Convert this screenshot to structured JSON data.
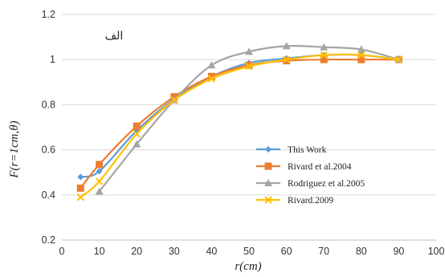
{
  "chart_data": {
    "type": "line",
    "panel_label": "الف",
    "xlabel": "r(cm)",
    "ylabel": "F(r=1cm,θ)",
    "xlim": [
      0,
      100
    ],
    "ylim": [
      0.2,
      1.2
    ],
    "x_ticks": [
      "0",
      "10",
      "20",
      "30",
      "40",
      "50",
      "60",
      "70",
      "80",
      "90",
      "100"
    ],
    "y_ticks": [
      "0.2",
      "0.4",
      "0.6",
      "0.8",
      "1",
      "1.2"
    ],
    "x_tick_values": [
      0,
      10,
      20,
      30,
      40,
      50,
      60,
      70,
      80,
      90,
      100
    ],
    "y_tick_values": [
      0.2,
      0.4,
      0.6,
      0.8,
      1.0,
      1.2
    ],
    "grid": "horizontal",
    "legend_position": "center-right",
    "series": [
      {
        "name": "This Work",
        "color": "#5b9bd5",
        "marker": "diamond",
        "x": [
          5,
          10,
          20,
          30,
          40,
          50,
          60,
          70,
          80,
          90
        ],
        "y": [
          0.48,
          0.505,
          0.685,
          0.825,
          0.925,
          0.985,
          1.005,
          1.02,
          1.02,
          1.0
        ]
      },
      {
        "name": "Rivard et al.2004",
        "color": "#ed7d31",
        "marker": "square",
        "x": [
          5,
          10,
          20,
          30,
          40,
          50,
          60,
          70,
          80,
          90
        ],
        "y": [
          0.43,
          0.535,
          0.705,
          0.835,
          0.925,
          0.975,
          0.995,
          1.0,
          1.0,
          1.0
        ]
      },
      {
        "name": "Rodriguez et al.2005",
        "color": "#a5a5a5",
        "marker": "triangle",
        "x": [
          10,
          20,
          30,
          40,
          50,
          60,
          70,
          80,
          90
        ],
        "y": [
          0.415,
          0.625,
          0.82,
          0.975,
          1.035,
          1.06,
          1.055,
          1.045,
          1.0
        ]
      },
      {
        "name": "Rivard.2009",
        "color": "#ffc000",
        "marker": "x",
        "x": [
          5,
          10,
          20,
          30,
          40,
          50,
          60,
          70,
          80,
          90
        ],
        "y": [
          0.39,
          0.46,
          0.67,
          0.82,
          0.915,
          0.97,
          1.0,
          1.02,
          1.02,
          1.0
        ]
      }
    ]
  }
}
